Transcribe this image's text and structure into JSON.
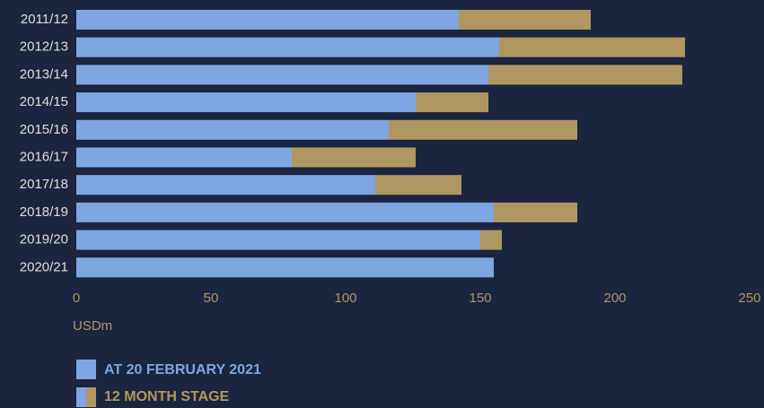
{
  "chart_data": {
    "type": "bar",
    "orientation": "horizontal",
    "stacked": true,
    "categories": [
      "2011/12",
      "2012/13",
      "2013/14",
      "2014/15",
      "2015/16",
      "2016/17",
      "2017/18",
      "2018/19",
      "2019/20",
      "2020/21"
    ],
    "series": [
      {
        "name": "AT 20 FEBRUARY 2021",
        "color": "#7ea6e0",
        "values": [
          142,
          157,
          153,
          126,
          116,
          80,
          111,
          155,
          150,
          155
        ]
      },
      {
        "name": "12 MONTH STAGE",
        "color": "#b09660",
        "values": [
          49,
          69,
          72,
          27,
          70,
          46,
          32,
          31,
          8,
          0
        ]
      }
    ],
    "xlim": [
      0,
      250
    ],
    "xticks": [
      0,
      50,
      100,
      150,
      200,
      250
    ],
    "x_label": "USDm",
    "grid": false
  }
}
